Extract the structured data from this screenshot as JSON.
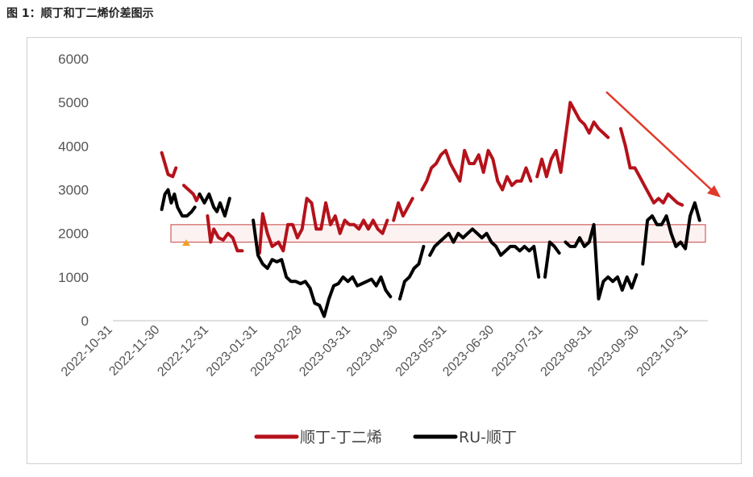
{
  "figure_title": "图 1：顺丁和丁二烯价差图示",
  "chart_data": {
    "type": "line",
    "title": "",
    "xlabel": "",
    "ylabel": "",
    "ylim": [
      0,
      6000
    ],
    "yticks": [
      "6000",
      "5000",
      "4000",
      "3000",
      "2000",
      "1000",
      "0"
    ],
    "xticks": [
      "2022-10-31",
      "2022-11-30",
      "2022-12-31",
      "2023-01-31",
      "2023-02-28",
      "2023-03-31",
      "2023-04-30",
      "2023-05-31",
      "2023-06-30",
      "2023-07-31",
      "2023-08-31",
      "2023-09-30",
      "2023-10-31"
    ],
    "legend_position": "bottom",
    "grid": false,
    "annotations": [
      "highlight band 1800-2200",
      "downward trend arrow"
    ],
    "series": [
      {
        "name": "顺丁-丁二烯",
        "color": "#b5121b",
        "segments": [
          [
            [
              "2022-12-01",
              3850
            ],
            [
              "2022-12-03",
              3600
            ],
            [
              "2022-12-05",
              3350
            ],
            [
              "2022-12-08",
              3300
            ],
            [
              "2022-12-10",
              3500
            ]
          ],
          [
            [
              "2022-12-15",
              3100
            ],
            [
              "2022-12-18",
              3000
            ],
            [
              "2022-12-21",
              2900
            ],
            [
              "2022-12-23",
              2750
            ],
            [
              "2022-12-25",
              2900
            ]
          ],
          [
            [
              "2022-12-30",
              2400
            ],
            [
              "2023-01-01",
              1800
            ],
            [
              "2023-01-03",
              2100
            ],
            [
              "2023-01-06",
              1900
            ],
            [
              "2023-01-09",
              1850
            ],
            [
              "2023-01-12",
              2000
            ],
            [
              "2023-01-15",
              1900
            ],
            [
              "2023-01-18",
              1600
            ],
            [
              "2023-01-21",
              1600
            ]
          ],
          [
            [
              "2023-02-01",
              1550
            ],
            [
              "2023-02-03",
              2450
            ],
            [
              "2023-02-06",
              2000
            ],
            [
              "2023-02-09",
              1700
            ],
            [
              "2023-02-13",
              1800
            ],
            [
              "2023-02-16",
              1600
            ],
            [
              "2023-02-19",
              2200
            ],
            [
              "2023-02-22",
              2200
            ],
            [
              "2023-02-25",
              1900
            ],
            [
              "2023-02-28",
              2100
            ],
            [
              "2023-03-03",
              2800
            ],
            [
              "2023-03-06",
              2700
            ],
            [
              "2023-03-09",
              2100
            ],
            [
              "2023-03-12",
              2100
            ],
            [
              "2023-03-15",
              2700
            ],
            [
              "2023-03-18",
              2200
            ],
            [
              "2023-03-21",
              2400
            ],
            [
              "2023-03-24",
              2000
            ],
            [
              "2023-03-27",
              2300
            ],
            [
              "2023-03-30",
              2200
            ],
            [
              "2023-04-02",
              2200
            ],
            [
              "2023-04-05",
              2100
            ],
            [
              "2023-04-08",
              2300
            ],
            [
              "2023-04-11",
              2100
            ],
            [
              "2023-04-14",
              2300
            ],
            [
              "2023-04-17",
              2100
            ],
            [
              "2023-04-20",
              2000
            ],
            [
              "2023-04-23",
              2300
            ]
          ],
          [
            [
              "2023-04-27",
              2300
            ],
            [
              "2023-04-30",
              2700
            ],
            [
              "2023-05-03",
              2400
            ],
            [
              "2023-05-06",
              2600
            ],
            [
              "2023-05-09",
              2800
            ]
          ],
          [
            [
              "2023-05-15",
              3000
            ],
            [
              "2023-05-18",
              3200
            ],
            [
              "2023-05-21",
              3500
            ],
            [
              "2023-05-24",
              3600
            ],
            [
              "2023-05-27",
              3800
            ],
            [
              "2023-05-30",
              3900
            ],
            [
              "2023-06-02",
              3600
            ],
            [
              "2023-06-05",
              3400
            ],
            [
              "2023-06-08",
              3200
            ],
            [
              "2023-06-11",
              3900
            ],
            [
              "2023-06-14",
              3600
            ],
            [
              "2023-06-17",
              3600
            ],
            [
              "2023-06-20",
              3800
            ],
            [
              "2023-06-23",
              3400
            ],
            [
              "2023-06-26",
              3900
            ],
            [
              "2023-06-29",
              3700
            ],
            [
              "2023-07-02",
              3200
            ],
            [
              "2023-07-05",
              3000
            ],
            [
              "2023-07-08",
              3300
            ],
            [
              "2023-07-11",
              3100
            ],
            [
              "2023-07-14",
              3200
            ],
            [
              "2023-07-17",
              3200
            ],
            [
              "2023-07-20",
              3500
            ],
            [
              "2023-07-23",
              3200
            ]
          ],
          [
            [
              "2023-07-27",
              3300
            ],
            [
              "2023-07-30",
              3700
            ],
            [
              "2023-08-02",
              3300
            ],
            [
              "2023-08-05",
              3700
            ],
            [
              "2023-08-08",
              3900
            ],
            [
              "2023-08-11",
              3400
            ],
            [
              "2023-08-14",
              4200
            ],
            [
              "2023-08-17",
              5000
            ],
            [
              "2023-08-20",
              4800
            ],
            [
              "2023-08-23",
              4600
            ],
            [
              "2023-08-26",
              4500
            ],
            [
              "2023-08-29",
              4300
            ],
            [
              "2023-09-01",
              4550
            ],
            [
              "2023-09-04",
              4400
            ],
            [
              "2023-09-07",
              4300
            ],
            [
              "2023-09-10",
              4200
            ]
          ],
          [
            [
              "2023-09-18",
              4400
            ],
            [
              "2023-09-21",
              4000
            ],
            [
              "2023-09-24",
              3500
            ],
            [
              "2023-09-27",
              3500
            ],
            [
              "2023-09-30",
              3300
            ],
            [
              "2023-10-03",
              3100
            ],
            [
              "2023-10-06",
              2900
            ],
            [
              "2023-10-09",
              2700
            ],
            [
              "2023-10-12",
              2800
            ],
            [
              "2023-10-15",
              2700
            ],
            [
              "2023-10-18",
              2900
            ],
            [
              "2023-10-21",
              2800
            ],
            [
              "2023-10-24",
              2700
            ],
            [
              "2023-10-27",
              2650
            ]
          ]
        ]
      },
      {
        "name": "RU-顺丁",
        "color": "#000000",
        "segments": [
          [
            [
              "2022-12-01",
              2550
            ],
            [
              "2022-12-03",
              2900
            ],
            [
              "2022-12-05",
              3000
            ],
            [
              "2022-12-07",
              2700
            ],
            [
              "2022-12-09",
              2900
            ],
            [
              "2022-12-11",
              2600
            ],
            [
              "2022-12-14",
              2400
            ],
            [
              "2022-12-17",
              2400
            ],
            [
              "2022-12-20",
              2500
            ],
            [
              "2022-12-22",
              2600
            ]
          ],
          [
            [
              "2022-12-25",
              2900
            ],
            [
              "2022-12-28",
              2700
            ],
            [
              "2022-12-31",
              2900
            ],
            [
              "2023-01-03",
              2600
            ],
            [
              "2023-01-05",
              2500
            ],
            [
              "2023-01-07",
              2700
            ],
            [
              "2023-01-10",
              2400
            ],
            [
              "2023-01-13",
              2800
            ]
          ],
          [
            [
              "2023-01-28",
              2300
            ],
            [
              "2023-01-31",
              1500
            ],
            [
              "2023-02-03",
              1300
            ],
            [
              "2023-02-06",
              1200
            ],
            [
              "2023-02-09",
              1400
            ],
            [
              "2023-02-12",
              1350
            ],
            [
              "2023-02-15",
              1400
            ],
            [
              "2023-02-18",
              1000
            ],
            [
              "2023-02-21",
              900
            ],
            [
              "2023-02-24",
              900
            ],
            [
              "2023-02-27",
              850
            ],
            [
              "2023-03-02",
              900
            ],
            [
              "2023-03-05",
              750
            ],
            [
              "2023-03-08",
              400
            ],
            [
              "2023-03-11",
              350
            ],
            [
              "2023-03-14",
              100
            ],
            [
              "2023-03-17",
              500
            ],
            [
              "2023-03-20",
              800
            ],
            [
              "2023-03-23",
              850
            ],
            [
              "2023-03-26",
              1000
            ],
            [
              "2023-03-29",
              900
            ],
            [
              "2023-04-01",
              1000
            ],
            [
              "2023-04-04",
              800
            ],
            [
              "2023-04-07",
              850
            ],
            [
              "2023-04-10",
              900
            ],
            [
              "2023-04-13",
              950
            ],
            [
              "2023-04-16",
              800
            ],
            [
              "2023-04-19",
              1000
            ],
            [
              "2023-04-22",
              700
            ],
            [
              "2023-04-25",
              550
            ]
          ],
          [
            [
              "2023-05-01",
              500
            ],
            [
              "2023-05-04",
              900
            ],
            [
              "2023-05-07",
              1000
            ],
            [
              "2023-05-10",
              1200
            ],
            [
              "2023-05-13",
              1300
            ],
            [
              "2023-05-16",
              1700
            ]
          ],
          [
            [
              "2023-05-20",
              1500
            ],
            [
              "2023-05-23",
              1700
            ],
            [
              "2023-05-26",
              1800
            ],
            [
              "2023-05-29",
              1900
            ],
            [
              "2023-06-01",
              2000
            ],
            [
              "2023-06-04",
              1800
            ],
            [
              "2023-06-07",
              2000
            ],
            [
              "2023-06-10",
              1900
            ],
            [
              "2023-06-13",
              2000
            ],
            [
              "2023-06-16",
              2100
            ],
            [
              "2023-06-19",
              2000
            ],
            [
              "2023-06-22",
              1900
            ],
            [
              "2023-06-25",
              2000
            ],
            [
              "2023-06-28",
              1800
            ],
            [
              "2023-07-01",
              1700
            ],
            [
              "2023-07-04",
              1500
            ],
            [
              "2023-07-07",
              1600
            ],
            [
              "2023-07-10",
              1700
            ],
            [
              "2023-07-13",
              1700
            ],
            [
              "2023-07-16",
              1600
            ],
            [
              "2023-07-19",
              1700
            ],
            [
              "2023-07-22",
              1600
            ],
            [
              "2023-07-25",
              1700
            ],
            [
              "2023-07-28",
              1000
            ]
          ],
          [
            [
              "2023-08-01",
              1000
            ],
            [
              "2023-08-04",
              1800
            ],
            [
              "2023-08-07",
              1700
            ],
            [
              "2023-08-10",
              1550
            ]
          ],
          [
            [
              "2023-08-14",
              1800
            ],
            [
              "2023-08-17",
              1700
            ],
            [
              "2023-08-20",
              1700
            ],
            [
              "2023-08-23",
              1900
            ],
            [
              "2023-08-26",
              1700
            ],
            [
              "2023-08-29",
              1800
            ],
            [
              "2023-09-01",
              2200
            ],
            [
              "2023-09-04",
              500
            ],
            [
              "2023-09-07",
              900
            ],
            [
              "2023-09-10",
              1000
            ],
            [
              "2023-09-13",
              900
            ],
            [
              "2023-09-16",
              1000
            ],
            [
              "2023-09-19",
              700
            ],
            [
              "2023-09-22",
              1000
            ],
            [
              "2023-09-25",
              750
            ],
            [
              "2023-09-28",
              1050
            ]
          ],
          [
            [
              "2023-10-02",
              1300
            ],
            [
              "2023-10-05",
              2300
            ],
            [
              "2023-10-08",
              2400
            ],
            [
              "2023-10-11",
              2200
            ],
            [
              "2023-10-14",
              2200
            ],
            [
              "2023-10-17",
              2400
            ],
            [
              "2023-10-20",
              2000
            ],
            [
              "2023-10-23",
              1700
            ],
            [
              "2023-10-26",
              1800
            ],
            [
              "2023-10-29",
              1650
            ],
            [
              "2023-11-01",
              2400
            ],
            [
              "2023-11-04",
              2700
            ],
            [
              "2023-11-07",
              2300
            ]
          ]
        ]
      }
    ]
  }
}
